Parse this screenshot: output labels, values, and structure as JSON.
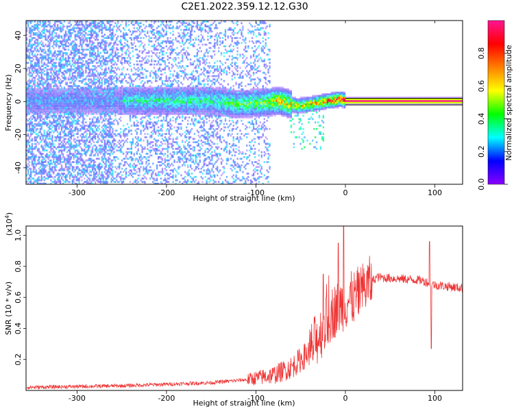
{
  "title": "C2E1.2022.359.12.12.G30",
  "chart_data": [
    {
      "type": "heatmap",
      "xlabel": "Height of straight line (km)",
      "ylabel": "Frequency (Hz)",
      "xlim": [
        -357,
        131
      ],
      "ylim": [
        -50,
        49
      ],
      "xticks": [
        -300,
        -200,
        -100,
        0,
        100
      ],
      "yticks": [
        -40,
        -20,
        0,
        20,
        40
      ],
      "tick_labels_x": [
        "-300",
        "-200",
        "-100",
        "0",
        "100"
      ],
      "tick_labels_y": [
        "-40",
        "-20",
        "0",
        "20",
        "40"
      ],
      "colorbar": {
        "label": "Normalized spectral amplitude",
        "range": [
          0,
          1
        ],
        "ticks": [
          0.0,
          0.2,
          0.4,
          0.6,
          0.8
        ],
        "tick_labels": [
          "0.0",
          "0.2",
          "0.4",
          "0.6",
          "0.8"
        ],
        "colormap": "rainbow",
        "stops": [
          "#8b00ff",
          "#0000ff",
          "#00ffff",
          "#00ff00",
          "#ffff00",
          "#ff7f00",
          "#ff0000",
          "#ff1493"
        ]
      },
      "ridge": [
        {
          "x": -250,
          "freq": 0,
          "amp": 0.35
        },
        {
          "x": -200,
          "freq": 0,
          "amp": 0.4
        },
        {
          "x": -150,
          "freq": 0,
          "amp": 0.4
        },
        {
          "x": -120,
          "freq": -2,
          "amp": 0.5
        },
        {
          "x": -90,
          "freq": -1,
          "amp": 0.55
        },
        {
          "x": -75,
          "freq": 0,
          "amp": 0.7
        },
        {
          "x": -55,
          "freq": -3,
          "amp": 0.65
        },
        {
          "x": -40,
          "freq": -2,
          "amp": 0.7
        },
        {
          "x": -20,
          "freq": 0,
          "amp": 0.85
        },
        {
          "x": -5,
          "freq": 1,
          "amp": 0.9
        },
        {
          "x": 0,
          "freq": 0,
          "amp": 1.0
        },
        {
          "x": 50,
          "freq": 0,
          "amp": 1.0
        },
        {
          "x": 100,
          "freq": 0,
          "amp": 1.0
        },
        {
          "x": 131,
          "freq": 0,
          "amp": 1.0
        }
      ],
      "scatter_noise": {
        "x_from": -357,
        "x_to": -85,
        "level": 0.15
      }
    },
    {
      "type": "line",
      "xlabel": "Height of straight line (km)",
      "ylabel": "SNR (10 * v/v)",
      "y_multiplier": "(x10^4)",
      "y_multiplier_base": "(x10",
      "y_multiplier_exp": "4",
      "y_multiplier_close": ")",
      "xlim": [
        -357,
        131
      ],
      "ylim": [
        0,
        1.06
      ],
      "xticks": [
        -300,
        -200,
        -100,
        0,
        100
      ],
      "yticks": [
        0.2,
        0.4,
        0.6,
        0.8,
        1.0
      ],
      "tick_labels_x": [
        "-300",
        "-200",
        "-100",
        "0",
        "100"
      ],
      "tick_labels_y": [
        "0.2",
        "0.4",
        "0.6",
        "0.8",
        "1.0"
      ],
      "color": "#ee3333",
      "trend": [
        {
          "x": -357,
          "y": 0.02
        },
        {
          "x": -250,
          "y": 0.03
        },
        {
          "x": -150,
          "y": 0.05
        },
        {
          "x": -110,
          "y": 0.07
        },
        {
          "x": -80,
          "y": 0.1
        },
        {
          "x": -60,
          "y": 0.15
        },
        {
          "x": -40,
          "y": 0.25
        },
        {
          "x": -25,
          "y": 0.4
        },
        {
          "x": -15,
          "y": 0.5
        },
        {
          "x": -5,
          "y": 0.55
        },
        {
          "x": 10,
          "y": 0.6
        },
        {
          "x": 25,
          "y": 0.68
        },
        {
          "x": 35,
          "y": 0.73
        },
        {
          "x": 60,
          "y": 0.72
        },
        {
          "x": 85,
          "y": 0.71
        },
        {
          "x": 100,
          "y": 0.68
        },
        {
          "x": 131,
          "y": 0.66
        }
      ],
      "spikes": [
        {
          "x": -2,
          "y": 1.06
        },
        {
          "x": -8,
          "y": 0.95
        },
        {
          "x": -25,
          "y": 0.75
        },
        {
          "x": 94,
          "y": 0.96
        },
        {
          "x": 96,
          "y": 0.27
        }
      ]
    }
  ]
}
